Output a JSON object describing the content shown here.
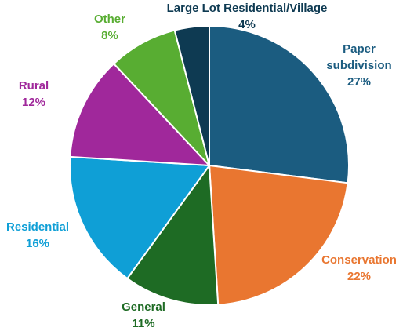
{
  "chart_data": {
    "type": "pie",
    "title": "",
    "start_angle_deg": 0,
    "direction": "clockwise",
    "slices": [
      {
        "label_lines": [
          "Paper",
          "subdivision"
        ],
        "label": "Paper subdivision",
        "value": 27,
        "pct_text": "27%",
        "color": "#1b5c80",
        "label_color": "#1b5c80"
      },
      {
        "label_lines": [
          "Conservation"
        ],
        "label": "Conservation",
        "value": 22,
        "pct_text": "22%",
        "color": "#e97630",
        "label_color": "#e97630"
      },
      {
        "label_lines": [
          "General"
        ],
        "label": "General",
        "value": 11,
        "pct_text": "11%",
        "color": "#1e6b24",
        "label_color": "#1e6b24"
      },
      {
        "label_lines": [
          "Residential"
        ],
        "label": "Residential",
        "value": 16,
        "pct_text": "16%",
        "color": "#0f9fd6",
        "label_color": "#0f9fd6"
      },
      {
        "label_lines": [
          "Rural"
        ],
        "label": "Rural",
        "value": 12,
        "pct_text": "12%",
        "color": "#a0289b",
        "label_color": "#a0289b"
      },
      {
        "label_lines": [
          "Other"
        ],
        "label": "Other",
        "value": 8,
        "pct_text": "8%",
        "color": "#58ad32",
        "label_color": "#58ad32"
      },
      {
        "label_lines": [
          "Large Lot Residential/Village"
        ],
        "label": "Large Lot Residential/Village",
        "value": 4,
        "pct_text": "4%",
        "color": "#0e3a52",
        "label_color": "#0e3a52"
      }
    ]
  }
}
